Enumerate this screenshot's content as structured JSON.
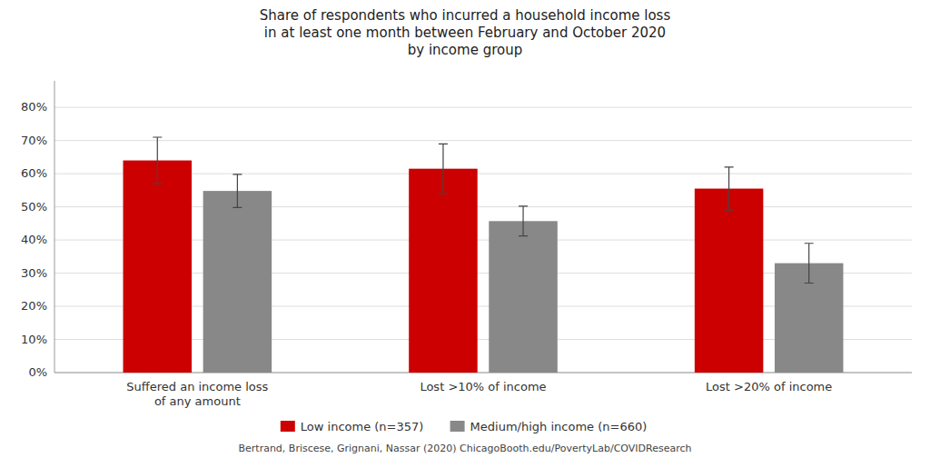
{
  "chart_data": {
    "type": "bar",
    "title": "Share of respondents who incurred a household income loss\nin at least one month between February and October 2020\nby income group",
    "categories": [
      "Suffered an income loss\nof any amount",
      "Lost >10% of income",
      "Lost >20% of income"
    ],
    "series": [
      {
        "name": "Low income (n=357)",
        "color": "#cc0000",
        "values": [
          0.64,
          0.615,
          0.555
        ],
        "errors": [
          0.07,
          0.075,
          0.065
        ]
      },
      {
        "name": "Medium/high income (n=660)",
        "color": "#888888",
        "values": [
          0.548,
          0.457,
          0.33
        ],
        "errors": [
          0.05,
          0.045,
          0.06
        ]
      }
    ],
    "ylim": [
      0,
      0.88
    ],
    "yticks": [
      {
        "value": 0,
        "label": "0%"
      },
      {
        "value": 0.1,
        "label": "10%"
      },
      {
        "value": 0.2,
        "label": "20%"
      },
      {
        "value": 0.3,
        "label": "30%"
      },
      {
        "value": 0.4,
        "label": "40%"
      },
      {
        "value": 0.5,
        "label": "50%"
      },
      {
        "value": 0.6,
        "label": "60%"
      },
      {
        "value": 0.7,
        "label": "70%"
      },
      {
        "value": 0.8,
        "label": "80%"
      }
    ],
    "grid": true,
    "legend": "bottom",
    "footnote": "Bertrand, Briscese, Grignani, Nassar (2020) ChicagoBooth.edu/PovertyLab/COVIDResearch"
  }
}
